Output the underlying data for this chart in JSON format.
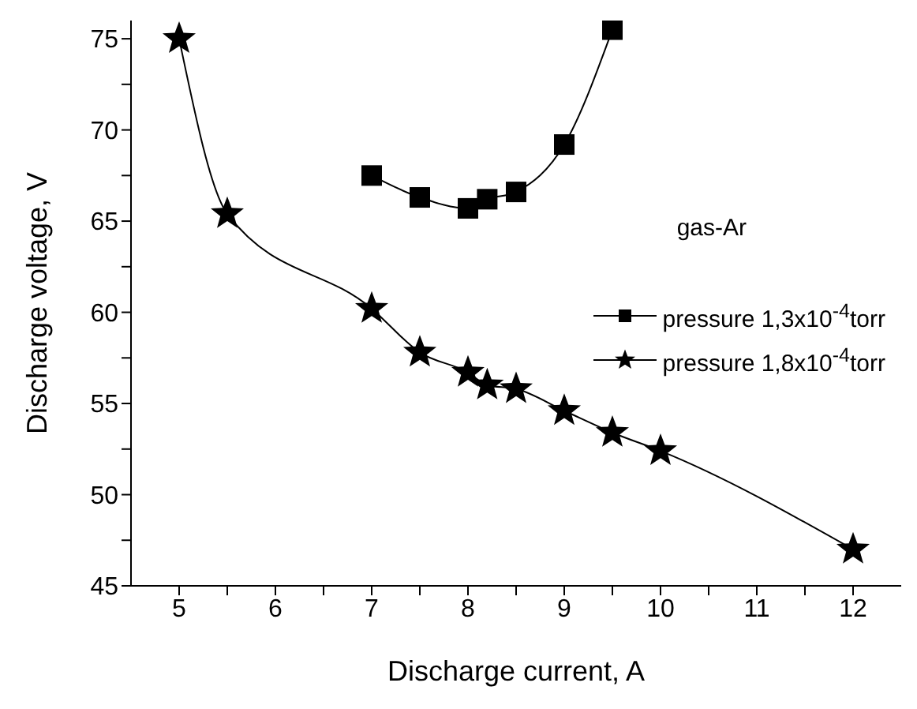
{
  "chart_data": {
    "type": "line",
    "xlabel": "Discharge current, A",
    "ylabel": "Discharge voltage, V",
    "annotations": [
      "gas-Ar"
    ],
    "xlim": [
      4.5,
      12.5
    ],
    "xticks": [
      5,
      {
        "value": 5.5,
        "label": null
      },
      6,
      {
        "value": 6.5,
        "label": null
      },
      7,
      {
        "value": 7.5,
        "label": null
      },
      8,
      {
        "value": 8.5,
        "label": null
      },
      9,
      {
        "value": 9.5,
        "label": null
      },
      10,
      {
        "value": 10.5,
        "label": null
      },
      11,
      {
        "value": 11.5,
        "label": null
      },
      12
    ],
    "ylim": [
      45,
      76
    ],
    "yticks": [
      45,
      {
        "value": 47.5,
        "label": null
      },
      50,
      {
        "value": 52.5,
        "label": null
      },
      55,
      {
        "value": 57.5,
        "label": null
      },
      60,
      {
        "value": 62.5,
        "label": null
      },
      65,
      {
        "value": 67.5,
        "label": null
      },
      70,
      {
        "value": 72.5,
        "label": null
      },
      75
    ],
    "grid": false,
    "legend": "right",
    "line_style": "solid",
    "series": [
      {
        "name": "pressure 1,3x10$^{-4}$torr",
        "color": "#000000",
        "marker": "square",
        "x": [
          7,
          7.5,
          8,
          8.2,
          8.5,
          9,
          9.5
        ],
        "values": [
          67.5,
          66.3,
          65.7,
          66.2,
          66.6,
          69.2,
          75.5
        ]
      },
      {
        "name": "pressure 1,8x10$^{-4}$torr",
        "color": "#000000",
        "marker": "star",
        "x": [
          5,
          5.5,
          7,
          7.5,
          8,
          8.2,
          8.5,
          9,
          9.5,
          10,
          12
        ],
        "values": [
          75,
          65.4,
          60.2,
          57.8,
          56.7,
          56.0,
          55.8,
          54.6,
          53.4,
          52.4,
          47
        ]
      }
    ]
  }
}
